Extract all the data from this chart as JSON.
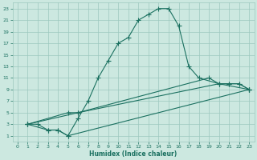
{
  "xlabel": "Humidex (Indice chaleur)",
  "bg_color": "#cce8e0",
  "grid_color": "#9cc8be",
  "line_color": "#1a7060",
  "xlim": [
    -0.5,
    23.5
  ],
  "ylim": [
    0,
    24
  ],
  "xticks": [
    0,
    1,
    2,
    3,
    4,
    5,
    6,
    7,
    8,
    9,
    10,
    11,
    12,
    13,
    14,
    15,
    16,
    17,
    18,
    19,
    20,
    21,
    22,
    23
  ],
  "yticks": [
    1,
    3,
    5,
    7,
    9,
    11,
    13,
    15,
    17,
    19,
    21,
    23
  ],
  "main_x": [
    1,
    2,
    3,
    4,
    5,
    6,
    7,
    8,
    9,
    10,
    11,
    12,
    13,
    14,
    15,
    16,
    17,
    18,
    20,
    21,
    22,
    23
  ],
  "main_y": [
    3,
    3,
    2,
    2,
    1,
    4,
    7,
    11,
    14,
    17,
    18,
    21,
    22,
    23,
    23,
    20,
    13,
    11,
    10,
    10,
    10,
    9
  ],
  "line2_x": [
    1,
    3,
    4,
    5,
    23
  ],
  "line2_y": [
    3,
    2,
    2,
    1,
    9
  ],
  "line3_x": [
    1,
    5,
    6,
    20,
    21,
    22,
    23
  ],
  "line3_y": [
    3,
    5,
    5,
    10,
    10,
    10,
    9
  ],
  "line4_x": [
    1,
    6,
    19,
    20,
    23
  ],
  "line4_y": [
    3,
    5,
    11,
    10,
    9
  ]
}
